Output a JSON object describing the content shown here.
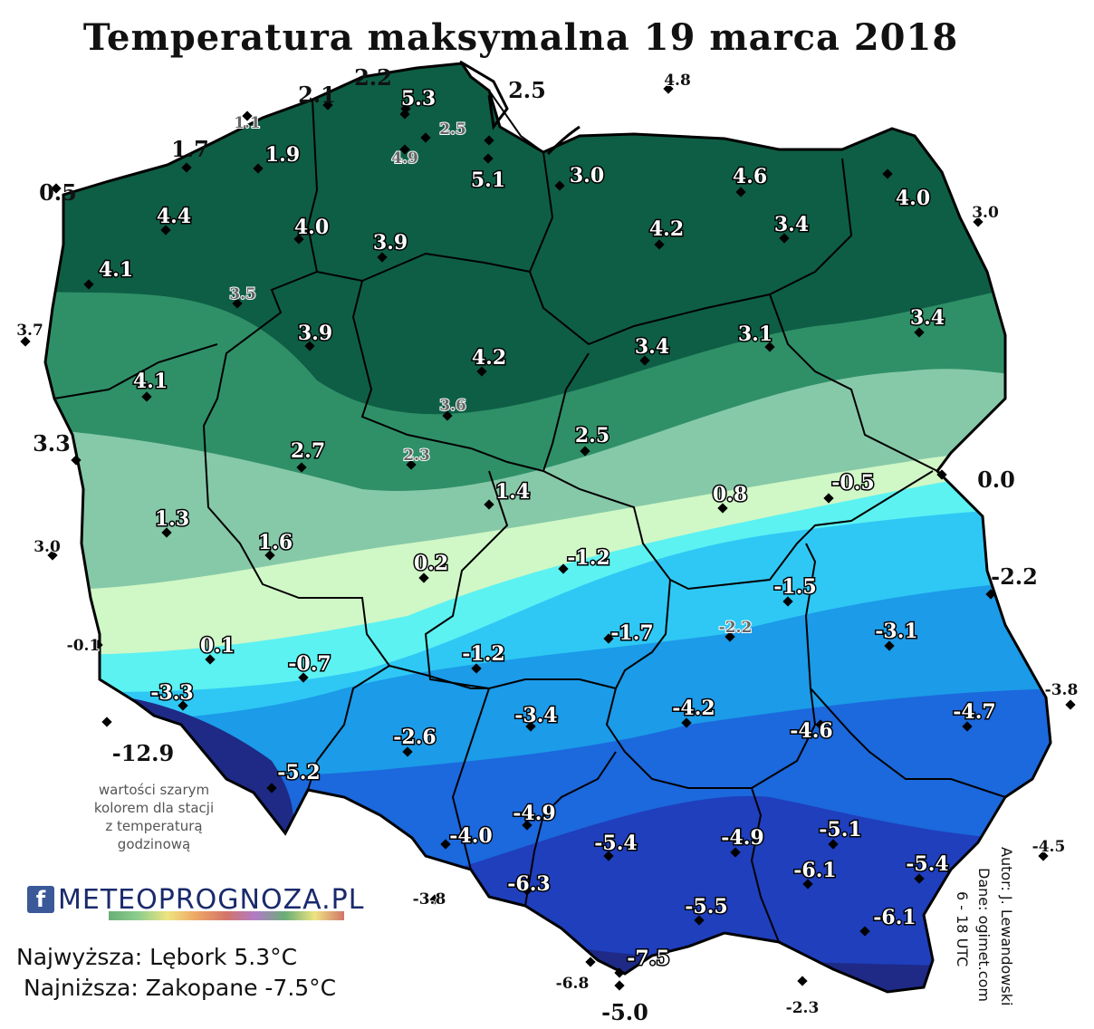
{
  "title": "Temperatura maksymalna 19 marca 2018",
  "note_lines": [
    "wartości szarym",
    "kolorem dla stacji",
    "z temperaturą",
    "godzinową"
  ],
  "logo": {
    "fb": "f",
    "text": "METEOPROGNOZA.PL",
    "icon": "facebook-icon"
  },
  "summary": {
    "highest": "Najwyższa: Lębork 5.3°C",
    "lowest": "Najniższa: Zakopane -7.5°C"
  },
  "credits": {
    "author": "Autor: J. Lewandowski",
    "data": "Dane: ogimet.com",
    "time": "6 - 18 UTC"
  },
  "colors": {
    "band_ge_3": "#0e5e45",
    "band_2_3": "#2f9068",
    "band_1_2": "#86c9a8",
    "band_0_1": "#d0f7c6",
    "band_m1_0": "#5cf2f2",
    "band_m2_m1": "#2fc8f5",
    "band_m3_m2": "#1b9be8",
    "band_m5_m3": "#1c68dd",
    "band_m6_m5": "#1f3fbd",
    "band_lt_m6": "#1e2a86",
    "white_label_text": "#ffffff",
    "gray_label_text": "#666666",
    "border": "#000000"
  },
  "stations": [
    {
      "v": "2.1",
      "t": "black"
    },
    {
      "v": "2.2",
      "t": "black"
    },
    {
      "v": "5.3",
      "t": "white"
    },
    {
      "v": "2.5",
      "t": "black"
    },
    {
      "v": "4.8",
      "t": "gray"
    },
    {
      "v": "1.1",
      "t": "gray"
    },
    {
      "v": "2.5",
      "t": "gray"
    },
    {
      "v": "1.7",
      "t": "black"
    },
    {
      "v": "1.9",
      "t": "white"
    },
    {
      "v": "4.9",
      "t": "gray"
    },
    {
      "v": "5.1",
      "t": "white"
    },
    {
      "v": "0.5",
      "t": "black"
    },
    {
      "v": "3.0",
      "t": "white"
    },
    {
      "v": "4.6",
      "t": "white"
    },
    {
      "v": "4.0",
      "t": "white"
    },
    {
      "v": "4.4",
      "t": "white"
    },
    {
      "v": "4.0",
      "t": "white"
    },
    {
      "v": "3.9",
      "t": "white"
    },
    {
      "v": "4.2",
      "t": "white"
    },
    {
      "v": "3.4",
      "t": "white"
    },
    {
      "v": "3.0",
      "t": "gray"
    },
    {
      "v": "4.1",
      "t": "white"
    },
    {
      "v": "3.5",
      "t": "gray"
    },
    {
      "v": "3.7",
      "t": "gray"
    },
    {
      "v": "3.9",
      "t": "white"
    },
    {
      "v": "4.2",
      "t": "white"
    },
    {
      "v": "3.4",
      "t": "white"
    },
    {
      "v": "3.1",
      "t": "white"
    },
    {
      "v": "3.4",
      "t": "white"
    },
    {
      "v": "4.1",
      "t": "white"
    },
    {
      "v": "3.6",
      "t": "gray"
    },
    {
      "v": "3.3",
      "t": "black"
    },
    {
      "v": "2.7",
      "t": "white"
    },
    {
      "v": "2.3",
      "t": "gray"
    },
    {
      "v": "2.5",
      "t": "white"
    },
    {
      "v": "1.4",
      "t": "white"
    },
    {
      "v": "0.8",
      "t": "white"
    },
    {
      "v": "-0.5",
      "t": "white"
    },
    {
      "v": "0.0",
      "t": "black"
    },
    {
      "v": "1.3",
      "t": "white"
    },
    {
      "v": "1.6",
      "t": "white"
    },
    {
      "v": "3.0",
      "t": "gray"
    },
    {
      "v": "0.2",
      "t": "white"
    },
    {
      "v": "-1.2",
      "t": "white"
    },
    {
      "v": "-2.2",
      "t": "black"
    },
    {
      "v": "-1.5",
      "t": "white"
    },
    {
      "v": "-0.1",
      "t": "gray"
    },
    {
      "v": "0.1",
      "t": "white"
    },
    {
      "v": "-0.7",
      "t": "white"
    },
    {
      "v": "-2.2",
      "t": "gray"
    },
    {
      "v": "-1.7",
      "t": "white"
    },
    {
      "v": "-3.1",
      "t": "white"
    },
    {
      "v": "-1.2",
      "t": "white"
    },
    {
      "v": "-3.3",
      "t": "white"
    },
    {
      "v": "-3.8",
      "t": "gray"
    },
    {
      "v": "-4.2",
      "t": "white"
    },
    {
      "v": "-3.4",
      "t": "white"
    },
    {
      "v": "-4.7",
      "t": "white"
    },
    {
      "v": "-12.9",
      "t": "black"
    },
    {
      "v": "-2.6",
      "t": "white"
    },
    {
      "v": "-4.6",
      "t": "white"
    },
    {
      "v": "-5.2",
      "t": "white"
    },
    {
      "v": "-4.9",
      "t": "white"
    },
    {
      "v": "-5.1",
      "t": "white"
    },
    {
      "v": "-4.5",
      "t": "gray"
    },
    {
      "v": "-4.0",
      "t": "white"
    },
    {
      "v": "-5.4",
      "t": "white"
    },
    {
      "v": "-4.9",
      "t": "white"
    },
    {
      "v": "-5.4",
      "t": "white"
    },
    {
      "v": "-6.3",
      "t": "white"
    },
    {
      "v": "-6.1",
      "t": "white"
    },
    {
      "v": "-3.8",
      "t": "gray"
    },
    {
      "v": "-5.5",
      "t": "white"
    },
    {
      "v": "-6.1",
      "t": "white"
    },
    {
      "v": "-7.5",
      "t": "white"
    },
    {
      "v": "-6.8",
      "t": "gray"
    },
    {
      "v": "-2.3",
      "t": "gray"
    },
    {
      "v": "-5.0",
      "t": "black"
    }
  ]
}
